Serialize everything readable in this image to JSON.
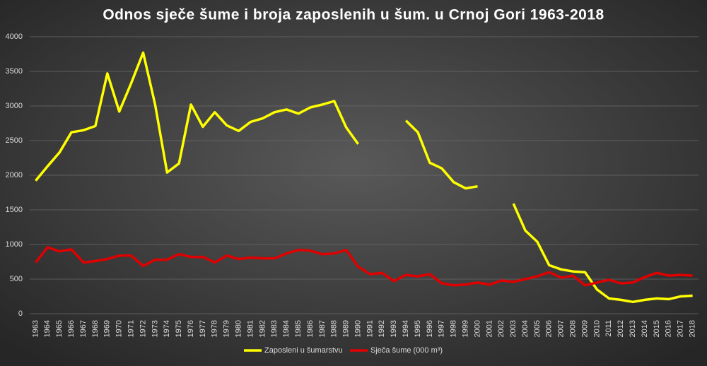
{
  "chart_data": {
    "type": "line",
    "title": "Odnos sječe šume i broja zaposlenih u šum. u Crnoj Gori 1963-2018",
    "categories": [
      "1963",
      "1964",
      "1965",
      "1966",
      "1967",
      "1968",
      "1969",
      "1970",
      "1971",
      "1972",
      "1973",
      "1974",
      "1975",
      "1976",
      "1977",
      "1978",
      "1979",
      "1980",
      "1981",
      "1982",
      "1983",
      "1984",
      "1985",
      "1986",
      "1987",
      "1988",
      "1989",
      "1990",
      "1991",
      "1992",
      "1993",
      "1994",
      "1995",
      "1996",
      "1997",
      "1998",
      "1999",
      "2000",
      "2001",
      "2002",
      "2003",
      "2004",
      "2005",
      "2006",
      "2007",
      "2008",
      "2009",
      "2010",
      "2011",
      "2012",
      "2013",
      "2014",
      "2015",
      "2016",
      "2017",
      "2018"
    ],
    "series": [
      {
        "name": "Zaposleni u šumarstvu",
        "color": "#ffff00",
        "values": [
          1920,
          2130,
          2330,
          2620,
          2650,
          2710,
          3470,
          2920,
          3330,
          3770,
          3020,
          2040,
          2170,
          3020,
          2700,
          2910,
          2720,
          2640,
          2770,
          2820,
          2910,
          2950,
          2890,
          2980,
          3020,
          3070,
          2690,
          2450,
          null,
          null,
          null,
          2790,
          2620,
          2180,
          2100,
          1900,
          1810,
          1840,
          null,
          null,
          1590,
          1200,
          1040,
          700,
          640,
          610,
          600,
          350,
          220,
          200,
          170,
          200,
          220,
          210,
          250,
          260
        ]
      },
      {
        "name": "Sječa šume (000 m³)",
        "color": "#e00000",
        "values": [
          740,
          960,
          900,
          930,
          740,
          760,
          790,
          840,
          840,
          690,
          780,
          780,
          860,
          820,
          820,
          740,
          840,
          790,
          810,
          800,
          800,
          870,
          920,
          910,
          860,
          870,
          920,
          680,
          570,
          590,
          470,
          560,
          540,
          570,
          440,
          410,
          420,
          450,
          420,
          480,
          460,
          500,
          540,
          600,
          520,
          550,
          410,
          450,
          490,
          440,
          450,
          530,
          590,
          550,
          560,
          550
        ]
      }
    ],
    "ylim": [
      0,
      4000
    ],
    "yticks": [
      0,
      500,
      1000,
      1500,
      2000,
      2500,
      3000,
      3500,
      4000
    ],
    "grid": true,
    "legend": "bottom"
  }
}
